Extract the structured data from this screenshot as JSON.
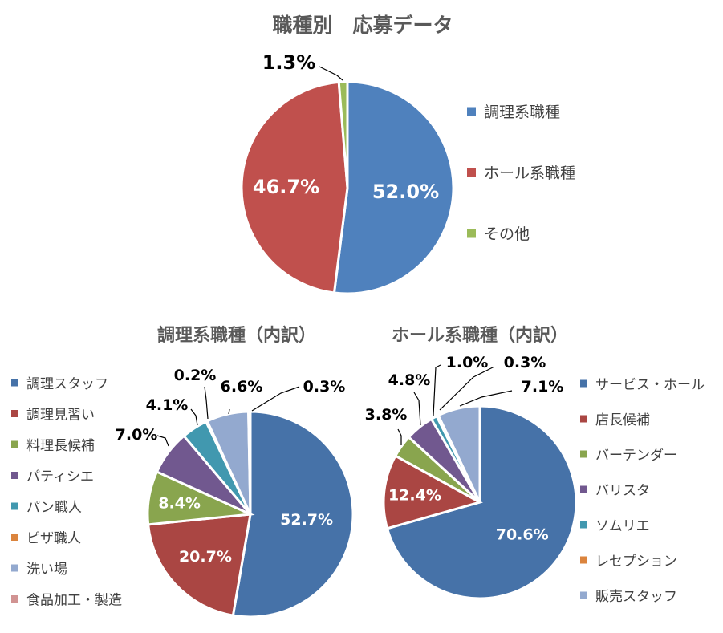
{
  "colors": {
    "blue": "#4F81BD",
    "red": "#C0504D",
    "green": "#9BBB59",
    "purple": "#8064A2",
    "teal": "#4BACC6",
    "orange": "#F79646",
    "lightblue": "#95A9D1",
    "pink": "#D99694"
  },
  "chart_data": [
    {
      "type": "pie",
      "title": "職種別　応募データ",
      "legend_position": "right",
      "slices": [
        {
          "label": "調理系職種",
          "value": 52.0,
          "display": "52.0%",
          "color": "#4F81BD"
        },
        {
          "label": "ホール系職種",
          "value": 46.7,
          "display": "46.7%",
          "color": "#C0504D"
        },
        {
          "label": "その他",
          "value": 1.3,
          "display": "1.3%",
          "color": "#9BBB59"
        }
      ]
    },
    {
      "type": "pie",
      "title": "調理系職種（内訳）",
      "legend_position": "left",
      "slices": [
        {
          "label": "調理スタッフ",
          "value": 52.7,
          "display": "52.7%",
          "color": "#4672A8"
        },
        {
          "label": "調理見習い",
          "value": 20.7,
          "display": "20.7%",
          "color": "#AA4643"
        },
        {
          "label": "料理長候補",
          "value": 8.4,
          "display": "8.4%",
          "color": "#89A54E"
        },
        {
          "label": "パティシエ",
          "value": 7.0,
          "display": "7.0%",
          "color": "#71588F"
        },
        {
          "label": "パン職人",
          "value": 4.1,
          "display": "4.1%",
          "color": "#4198AF"
        },
        {
          "label": "ピザ職人",
          "value": 0.2,
          "display": "0.2%",
          "color": "#DB843D"
        },
        {
          "label": "洗い場",
          "value": 6.6,
          "display": "6.6%",
          "color": "#93A9CF"
        },
        {
          "label": "食品加工・製造",
          "value": 0.3,
          "display": "0.3%",
          "color": "#D19392"
        }
      ]
    },
    {
      "type": "pie",
      "title": "ホール系職種（内訳）",
      "legend_position": "right",
      "slices": [
        {
          "label": "サービス・ホール",
          "value": 70.6,
          "display": "70.6%",
          "color": "#4672A8"
        },
        {
          "label": "店長候補",
          "value": 12.4,
          "display": "12.4%",
          "color": "#AA4643"
        },
        {
          "label": "バーテンダー",
          "value": 3.8,
          "display": "3.8%",
          "color": "#89A54E"
        },
        {
          "label": "バリスタ",
          "value": 4.8,
          "display": "4.8%",
          "color": "#71588F"
        },
        {
          "label": "ソムリエ",
          "value": 1.0,
          "display": "1.0%",
          "color": "#4198AF"
        },
        {
          "label": "レセプション",
          "value": 0.3,
          "display": "0.3%",
          "color": "#DB843D"
        },
        {
          "label": "販売スタッフ",
          "value": 7.1,
          "display": "7.1%",
          "color": "#93A9CF"
        }
      ]
    }
  ]
}
